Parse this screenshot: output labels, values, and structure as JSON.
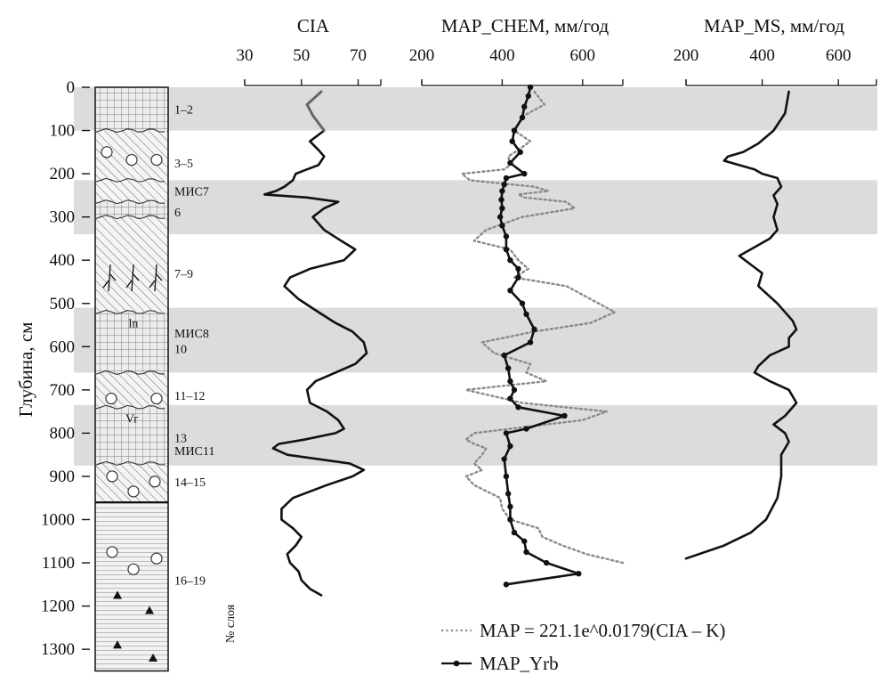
{
  "chart_data": [
    {
      "type": "column",
      "yaxis": {
        "label": "Глубина, см",
        "ticks": [
          0,
          100,
          200,
          300,
          400,
          500,
          600,
          700,
          800,
          900,
          1000,
          1100,
          1200,
          1300
        ],
        "range": [
          0,
          1350
        ],
        "inverted": true
      },
      "layers_label": "№ слоя",
      "layer_labels": [
        {
          "text": "1–2",
          "depth": 50
        },
        {
          "text": "3–5",
          "depth": 175
        },
        {
          "text": "МИС7",
          "depth": 240
        },
        {
          "text": "6",
          "depth": 288
        },
        {
          "text": "7–9",
          "depth": 430
        },
        {
          "text": "МИС8",
          "depth": 568
        },
        {
          "text": "10",
          "depth": 605
        },
        {
          "text": "11–12",
          "depth": 713
        },
        {
          "text": "13",
          "depth": 810
        },
        {
          "text": "МИС11",
          "depth": 840
        },
        {
          "text": "14–15",
          "depth": 912
        },
        {
          "text": "16–19",
          "depth": 1140
        }
      ],
      "column_symbols": {
        "paleosol_1": "ln",
        "paleosol_2": "Vr"
      },
      "shaded_bands": [
        [
          0,
          100
        ],
        [
          215,
          340
        ],
        [
          510,
          660
        ],
        [
          735,
          875
        ]
      ],
      "band_color": "#dcdcdc"
    },
    {
      "type": "line",
      "title": "CIA",
      "xaxis": {
        "ticks": [
          30,
          50,
          70
        ],
        "range": [
          30,
          78
        ]
      },
      "series": [
        {
          "style": "solid",
          "color_top": "#666666",
          "color": "#111111",
          "depth": [
            10,
            40,
            65,
            100,
            125,
            145,
            160,
            180,
            190,
            200,
            215,
            230,
            240,
            248,
            255,
            265,
            280,
            300,
            330,
            355,
            375,
            400,
            420,
            440,
            460,
            490,
            520,
            545,
            565,
            590,
            615,
            640,
            660,
            680,
            700,
            730,
            750,
            770,
            790,
            800,
            815,
            825,
            835,
            850,
            870,
            885,
            900,
            920,
            950,
            975,
            1000,
            1020,
            1040,
            1060,
            1080,
            1100,
            1120,
            1140,
            1160,
            1175
          ],
          "value": [
            57,
            52,
            54,
            58,
            53,
            56,
            58,
            56,
            52,
            48,
            47,
            44,
            41,
            37,
            52,
            63,
            58,
            54,
            58,
            64,
            69,
            65,
            53,
            46,
            44,
            49,
            56,
            62,
            68,
            72,
            73,
            69,
            62,
            55,
            52,
            53,
            59,
            63,
            65,
            62,
            51,
            42,
            40,
            45,
            67,
            72,
            68,
            59,
            47,
            43,
            43,
            47,
            50,
            48,
            45,
            46,
            49,
            50,
            53,
            57
          ]
        }
      ]
    },
    {
      "type": "line",
      "title": "MAP_CHEM, мм/год",
      "xaxis": {
        "ticks": [
          200,
          400,
          600
        ],
        "range": [
          200,
          700
        ]
      },
      "series": [
        {
          "name": "MAP = 221.1e^0.0179(CIA – K)",
          "style": "dotted",
          "color": "#8a8a8a",
          "depth": [
            10,
            40,
            65,
            100,
            125,
            145,
            160,
            180,
            190,
            200,
            215,
            230,
            240,
            248,
            255,
            265,
            280,
            300,
            330,
            355,
            375,
            400,
            420,
            440,
            460,
            490,
            520,
            545,
            565,
            590,
            615,
            640,
            660,
            680,
            700,
            730,
            750,
            770,
            790,
            800,
            815,
            825,
            835,
            850,
            870,
            885,
            900,
            920,
            950,
            975,
            1000,
            1020,
            1040,
            1060,
            1080,
            1100
          ],
          "value": [
            480,
            505,
            455,
            430,
            470,
            440,
            415,
            420,
            405,
            300,
            320,
            480,
            515,
            440,
            455,
            560,
            580,
            450,
            360,
            330,
            420,
            440,
            465,
            430,
            560,
            620,
            680,
            620,
            480,
            350,
            380,
            470,
            460,
            510,
            310,
            450,
            660,
            600,
            420,
            330,
            310,
            330,
            360,
            350,
            330,
            350,
            310,
            330,
            395,
            400,
            420,
            490,
            500,
            550,
            610,
            700
          ]
        },
        {
          "name": "MAP_Yrb",
          "style": "solid-markers",
          "color": "#111111",
          "depth": [
            0,
            20,
            45,
            70,
            100,
            125,
            150,
            175,
            200,
            210,
            225,
            240,
            260,
            280,
            300,
            320,
            345,
            375,
            400,
            420,
            440,
            470,
            500,
            525,
            560,
            590,
            620,
            650,
            680,
            700,
            720,
            740,
            760,
            790,
            800,
            830,
            860,
            900,
            940,
            970,
            1000,
            1030,
            1050,
            1075,
            1100,
            1125,
            1150
          ],
          "value": [
            470,
            465,
            455,
            450,
            430,
            425,
            445,
            420,
            455,
            410,
            405,
            400,
            398,
            400,
            395,
            400,
            410,
            410,
            420,
            440,
            440,
            420,
            450,
            460,
            480,
            470,
            405,
            415,
            420,
            430,
            420,
            440,
            555,
            460,
            410,
            420,
            405,
            410,
            415,
            420,
            420,
            430,
            455,
            460,
            510,
            590,
            410
          ]
        }
      ]
    },
    {
      "type": "line",
      "title": "MAP_MS, мм/год",
      "xaxis": {
        "ticks": [
          200,
          400,
          600
        ],
        "range": [
          200,
          700
        ]
      },
      "series": [
        {
          "style": "solid",
          "color": "#111111",
          "depth": [
            10,
            60,
            100,
            130,
            150,
            160,
            170,
            180,
            190,
            200,
            210,
            230,
            250,
            270,
            300,
            330,
            350,
            370,
            390,
            410,
            430,
            460,
            500,
            540,
            560,
            580,
            600,
            620,
            645,
            660,
            680,
            700,
            730,
            760,
            780,
            800,
            820,
            850,
            900,
            950,
            1000,
            1030,
            1060,
            1090
          ],
          "value": [
            470,
            460,
            430,
            390,
            350,
            310,
            300,
            340,
            380,
            400,
            440,
            450,
            430,
            440,
            430,
            440,
            420,
            380,
            340,
            370,
            400,
            390,
            440,
            480,
            490,
            470,
            470,
            420,
            390,
            380,
            420,
            470,
            490,
            460,
            430,
            460,
            470,
            450,
            450,
            440,
            410,
            370,
            300,
            200
          ]
        }
      ]
    }
  ],
  "legend": {
    "items": [
      {
        "label": "MAP = 221.1e^0.0179(CIA – K)",
        "style": "dotted"
      },
      {
        "label": "MAP_Yrb",
        "style": "solid-markers"
      }
    ],
    "placement": "bottom-right"
  }
}
